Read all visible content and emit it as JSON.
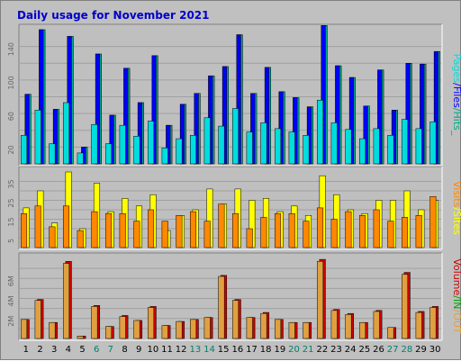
{
  "colors": {
    "background": "#c0c0c0",
    "panel": "#bfbfbf",
    "grid": "#a0a0a0",
    "pages": "#00dddd",
    "files": "#0000ff",
    "hits": "#00aa88",
    "visits": "#ff8800",
    "sites": "#ffff00",
    "kb_in": "#00a000",
    "kb_out": "#e0a040",
    "volume": "#cc0000",
    "weekend_label": "#00806a",
    "weekday_label": "#000000",
    "title": "#0000cc"
  },
  "chart_data": {
    "type": "bar",
    "title": "Daily usage for November 2021",
    "categories": [
      "1",
      "2",
      "3",
      "4",
      "5",
      "6",
      "7",
      "8",
      "9",
      "10",
      "11",
      "12",
      "13",
      "14",
      "15",
      "16",
      "17",
      "18",
      "19",
      "20",
      "21",
      "22",
      "23",
      "24",
      "25",
      "26",
      "27",
      "28",
      "29",
      "30"
    ],
    "weekend_days": [
      "6",
      "7",
      "13",
      "14",
      "20",
      "21",
      "27",
      "28"
    ],
    "panels": [
      {
        "id": "hits",
        "ylim": [
          0,
          160
        ],
        "ytick_labels": [
          "20",
          "60",
          "100",
          "140"
        ],
        "ytick_values": [
          20,
          60,
          100,
          140
        ],
        "legend": {
          "parts": [
            "Pages",
            "Files",
            "Hits"
          ],
          "separators": [
            "/",
            "/",
            "_"
          ]
        },
        "series": [
          {
            "name": "Hits",
            "color_key": "hits",
            "values": [
              83,
              160,
              65,
              152,
              20,
              131,
              58,
              114,
              73,
              129,
              46,
              71,
              84,
              105,
              116,
              154,
              84,
              115,
              86,
              79,
              68,
              165,
              117,
              103,
              69,
              112,
              64,
              120,
              119,
              134
            ]
          },
          {
            "name": "Files",
            "color_key": "files",
            "values": [
              83,
              160,
              65,
              152,
              20,
              131,
              58,
              114,
              73,
              129,
              46,
              71,
              84,
              105,
              116,
              154,
              84,
              115,
              86,
              79,
              68,
              165,
              117,
              103,
              69,
              112,
              64,
              120,
              119,
              134
            ]
          },
          {
            "name": "Pages",
            "color_key": "pages",
            "values": [
              34,
              64,
              24,
              73,
              13,
              47,
              24,
              46,
              33,
              51,
              19,
              30,
              34,
              55,
              45,
              66,
              38,
              49,
              42,
              38,
              34,
              76,
              49,
              41,
              30,
              42,
              34,
              53,
              42,
              50
            ]
          }
        ]
      },
      {
        "id": "visits",
        "ylim": [
          0,
          40
        ],
        "ytick_labels": [
          "5",
          "15",
          "25",
          "35"
        ],
        "ytick_values": [
          5,
          15,
          25,
          35
        ],
        "legend": {
          "parts": [
            "Visits",
            "Sites"
          ],
          "separators": [
            "/"
          ]
        },
        "series": [
          {
            "name": "Sites",
            "color_key": "sites",
            "values": [
              21,
              30,
              13,
              40,
              10,
              34,
              19,
              26,
              22,
              28,
              9,
              17,
              20,
              31,
              23,
              31,
              25,
              26,
              19,
              22,
              17,
              38,
              28,
              20,
              18,
              25,
              25,
              30,
              20,
              25
            ]
          },
          {
            "name": "Visits",
            "color_key": "visits",
            "values": [
              18,
              22,
              11,
              22,
              9,
              19,
              18,
              18,
              14,
              20,
              14,
              17,
              19,
              14,
              23,
              18,
              10,
              16,
              18,
              18,
              14,
              21,
              15,
              19,
              17,
              20,
              14,
              16,
              17,
              27
            ]
          }
        ]
      },
      {
        "id": "volume",
        "ylim": [
          0,
          8000000
        ],
        "ytick_labels": [
          "2M",
          "4M",
          "6M"
        ],
        "ytick_values": [
          2000000,
          4000000,
          6000000
        ],
        "legend": {
          "parts": [
            "Volume",
            "IN",
            "OUT"
          ],
          "separators": [
            "/",
            "/"
          ]
        },
        "series": [
          {
            "name": "Volume",
            "color_key": "volume",
            "values": [
              1900000,
              3900000,
              1600000,
              7700000,
              250000,
              3300000,
              1200000,
              2300000,
              1800000,
              3200000,
              1300000,
              1700000,
              1900000,
              2100000,
              6300000,
              3900000,
              2100000,
              2600000,
              1900000,
              1600000,
              1600000,
              7900000,
              2900000,
              2500000,
              1600000,
              2800000,
              1100000,
              6600000,
              2700000,
              3200000
            ]
          },
          {
            "name": "KBytes Out",
            "color_key": "kb_out",
            "values": [
              1900000,
              3800000,
              1600000,
              7500000,
              240000,
              3200000,
              1200000,
              2200000,
              1800000,
              3100000,
              1300000,
              1700000,
              1900000,
              2100000,
              6200000,
              3800000,
              2100000,
              2500000,
              1900000,
              1600000,
              1600000,
              7700000,
              2800000,
              2400000,
              1600000,
              2700000,
              1100000,
              6400000,
              2600000,
              3100000
            ]
          }
        ]
      }
    ]
  }
}
